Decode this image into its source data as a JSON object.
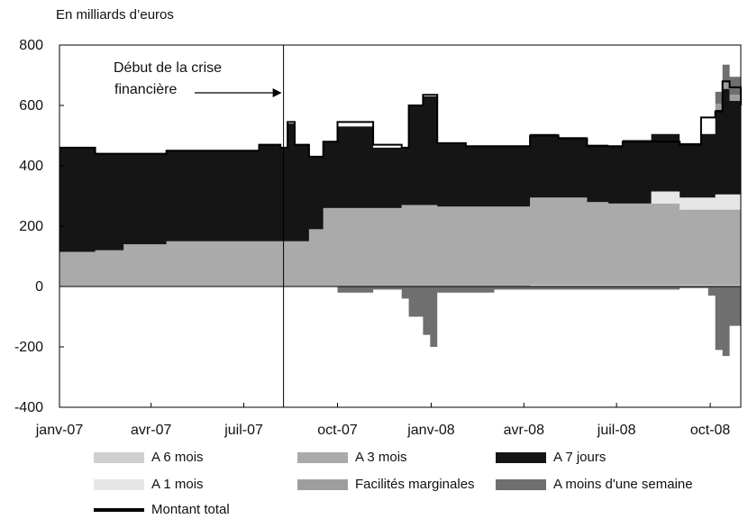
{
  "chart_data": {
    "type": "area",
    "ylabel": "En milliards d’euros",
    "ylim": [
      -400,
      800
    ],
    "yticks": [
      800,
      600,
      400,
      200,
      0,
      -200,
      -400
    ],
    "xlim": [
      "2007-01-01",
      "2008-10-31"
    ],
    "xticks": [
      {
        "date": "2007-01-01",
        "label": "janv-07"
      },
      {
        "date": "2007-04-01",
        "label": "avr-07"
      },
      {
        "date": "2007-07-01",
        "label": "juil-07"
      },
      {
        "date": "2007-10-01",
        "label": "oct-07"
      },
      {
        "date": "2008-01-01",
        "label": "janv-08"
      },
      {
        "date": "2008-04-01",
        "label": "avr-08"
      },
      {
        "date": "2008-07-01",
        "label": "juil-08"
      },
      {
        "date": "2008-10-01",
        "label": "oct-08"
      }
    ],
    "annotation": {
      "text": [
        "Début de la crise",
        "financière"
      ],
      "date": "2007-08-09"
    },
    "series": [
      {
        "name": "A 6 mois",
        "color": "#cfcfcf",
        "points": [
          [
            "2007-01-01",
            0
          ],
          [
            "2008-03-25",
            0
          ],
          [
            "2008-04-01",
            5
          ],
          [
            "2008-10-31",
            5
          ]
        ]
      },
      {
        "name": "A 3 mois",
        "color": "#aaaaaa",
        "points": [
          [
            "2007-01-01",
            115
          ],
          [
            "2007-02-01",
            120
          ],
          [
            "2007-03-01",
            140
          ],
          [
            "2007-04-15",
            150
          ],
          [
            "2007-06-01",
            150
          ],
          [
            "2007-08-20",
            150
          ],
          [
            "2007-09-01",
            190
          ],
          [
            "2007-09-15",
            260
          ],
          [
            "2007-12-01",
            270
          ],
          [
            "2007-12-20",
            270
          ],
          [
            "2008-01-01",
            265
          ],
          [
            "2008-03-31",
            265
          ],
          [
            "2008-04-01",
            290
          ],
          [
            "2008-05-01",
            290
          ],
          [
            "2008-06-01",
            275
          ],
          [
            "2008-06-20",
            270
          ],
          [
            "2008-07-01",
            270
          ],
          [
            "2008-09-01",
            250
          ],
          [
            "2008-10-31",
            250
          ]
        ]
      },
      {
        "name": "A 1 mois",
        "color": "#e6e6e6",
        "points": [
          [
            "2007-01-01",
            0
          ],
          [
            "2008-07-25",
            0
          ],
          [
            "2008-08-01",
            40
          ],
          [
            "2008-10-01",
            50
          ],
          [
            "2008-10-31",
            60
          ]
        ]
      },
      {
        "name": "A 7 jours",
        "color": "#151515",
        "points": [
          [
            "2007-01-01",
            345
          ],
          [
            "2007-02-01",
            320
          ],
          [
            "2007-03-01",
            300
          ],
          [
            "2007-04-15",
            300
          ],
          [
            "2007-06-01",
            300
          ],
          [
            "2007-07-15",
            320
          ],
          [
            "2007-08-01",
            310
          ],
          [
            "2007-08-09",
            390
          ],
          [
            "2007-08-20",
            320
          ],
          [
            "2007-09-01",
            240
          ],
          [
            "2007-09-15",
            220
          ],
          [
            "2007-10-01",
            270
          ],
          [
            "2007-11-01",
            200
          ],
          [
            "2007-12-01",
            190
          ],
          [
            "2007-12-10",
            330
          ],
          [
            "2007-12-20",
            360
          ],
          [
            "2008-01-01",
            210
          ],
          [
            "2008-02-01",
            200
          ],
          [
            "2008-03-01",
            200
          ],
          [
            "2008-04-01",
            210
          ],
          [
            "2008-05-01",
            200
          ],
          [
            "2008-06-01",
            190
          ],
          [
            "2008-07-01",
            210
          ],
          [
            "2008-08-01",
            190
          ],
          [
            "2008-09-01",
            180
          ],
          [
            "2008-09-20",
            210
          ],
          [
            "2008-10-01",
            280
          ],
          [
            "2008-10-10",
            350
          ],
          [
            "2008-10-20",
            310
          ],
          [
            "2008-10-31",
            290
          ]
        ]
      },
      {
        "name": "Facilités marginales",
        "color": "#9e9e9e",
        "points": [
          [
            "2007-01-01",
            0
          ],
          [
            "2008-09-30",
            0
          ],
          [
            "2008-10-05",
            20
          ],
          [
            "2008-10-31",
            20
          ]
        ]
      },
      {
        "name": "A moins d'une semaine",
        "color": "#6f6f6f",
        "points": [
          [
            "2007-01-01",
            0
          ],
          [
            "2008-09-25",
            0
          ],
          [
            "2008-10-01",
            40
          ],
          [
            "2008-10-10",
            60
          ],
          [
            "2008-10-31",
            30
          ]
        ]
      },
      {
        "name": "A moins d'une semaine (absorption)",
        "color": "#6f6f6f",
        "negative": true,
        "points": [
          [
            "2007-01-01",
            0
          ],
          [
            "2007-09-01",
            0
          ],
          [
            "2007-10-01",
            -20
          ],
          [
            "2007-11-01",
            -10
          ],
          [
            "2007-12-01",
            -40
          ],
          [
            "2007-12-10",
            -100
          ],
          [
            "2007-12-20",
            -160
          ],
          [
            "2007-12-28",
            -200
          ],
          [
            "2008-01-05",
            -20
          ],
          [
            "2008-03-01",
            -10
          ],
          [
            "2008-09-01",
            -5
          ],
          [
            "2008-09-25",
            -30
          ],
          [
            "2008-10-01",
            -210
          ],
          [
            "2008-10-10",
            -230
          ],
          [
            "2008-10-20",
            -130
          ],
          [
            "2008-10-28",
            -200
          ],
          [
            "2008-10-31",
            -180
          ]
        ]
      }
    ],
    "total": {
      "name": "Montant total",
      "color": "#000000",
      "points": [
        [
          "2007-01-01",
          460
        ],
        [
          "2007-02-01",
          440
        ],
        [
          "2007-03-01",
          440
        ],
        [
          "2007-04-15",
          450
        ],
        [
          "2007-06-01",
          450
        ],
        [
          "2007-07-15",
          470
        ],
        [
          "2007-08-01",
          460
        ],
        [
          "2007-08-09",
          545
        ],
        [
          "2007-08-20",
          470
        ],
        [
          "2007-09-01",
          430
        ],
        [
          "2007-09-15",
          480
        ],
        [
          "2007-10-01",
          545
        ],
        [
          "2007-11-01",
          470
        ],
        [
          "2007-12-01",
          460
        ],
        [
          "2007-12-10",
          600
        ],
        [
          "2007-12-20",
          635
        ],
        [
          "2008-01-01",
          475
        ],
        [
          "2008-02-01",
          465
        ],
        [
          "2008-03-01",
          465
        ],
        [
          "2008-04-01",
          500
        ],
        [
          "2008-05-01",
          490
        ],
        [
          "2008-06-01",
          465
        ],
        [
          "2008-07-01",
          480
        ],
        [
          "2008-08-01",
          480
        ],
        [
          "2008-09-01",
          470
        ],
        [
          "2008-09-20",
          560
        ],
        [
          "2008-10-01",
          580
        ],
        [
          "2008-10-10",
          680
        ],
        [
          "2008-10-20",
          660
        ],
        [
          "2008-10-31",
          600
        ]
      ]
    },
    "legend": [
      {
        "label": "A 6 mois",
        "color": "#cfcfcf"
      },
      {
        "label": "A 3 mois",
        "color": "#aaaaaa"
      },
      {
        "label": "A 7 jours",
        "color": "#151515"
      },
      {
        "label": "A 1 mois",
        "color": "#e6e6e6"
      },
      {
        "label": "Facilités marginales",
        "color": "#9e9e9e"
      },
      {
        "label": "A moins d'une semaine",
        "color": "#6f6f6f"
      },
      {
        "label": "Montant total",
        "color": "#000000"
      }
    ]
  }
}
